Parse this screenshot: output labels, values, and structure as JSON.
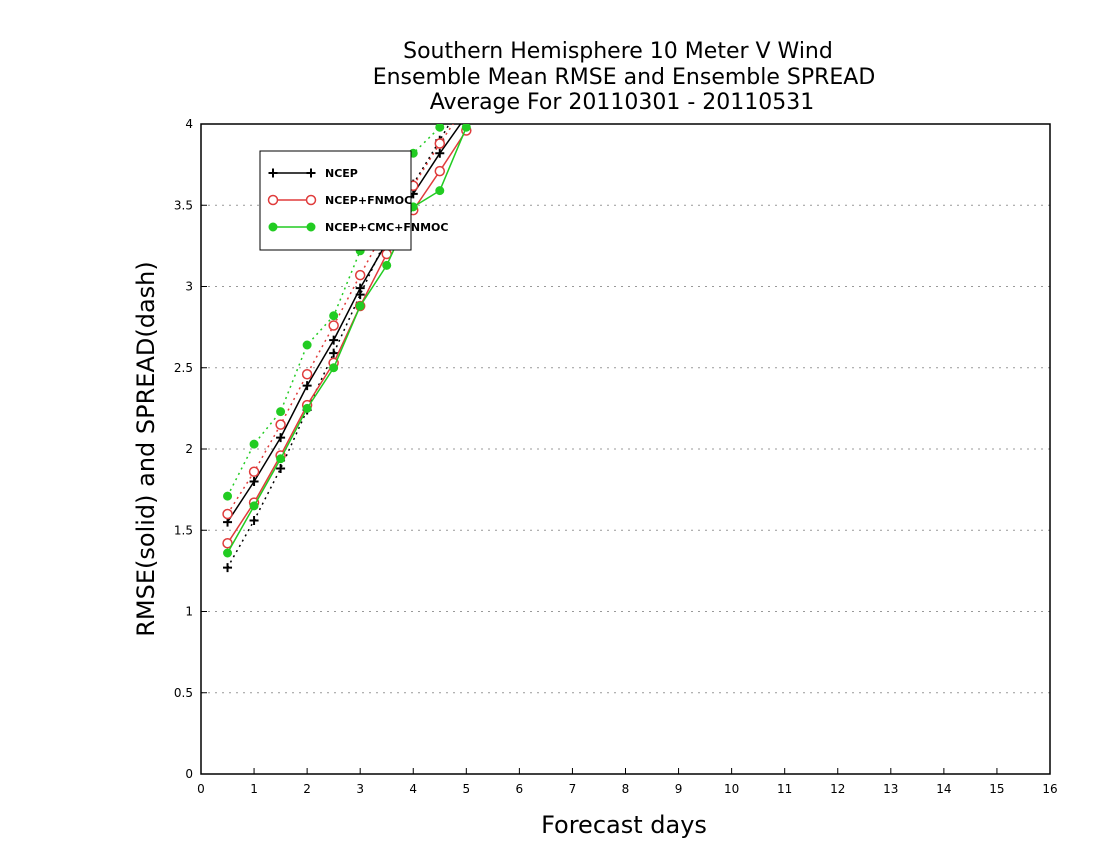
{
  "chart_data": {
    "type": "line",
    "title_lines": [
      "Southern Hemisphere 10 Meter V Wind",
      "Ensemble Mean RMSE and Ensemble SPREAD",
      "Average For 20110301 - 20110531"
    ],
    "xlabel": "Forecast days",
    "ylabel": "RMSE(solid) and SPREAD(dash)",
    "xlim": [
      0,
      16
    ],
    "ylim": [
      0,
      4
    ],
    "x_ticks": [
      "0",
      "1",
      "2",
      "3",
      "4",
      "5",
      "6",
      "7",
      "8",
      "9",
      "10",
      "11",
      "12",
      "13",
      "14",
      "15",
      "16"
    ],
    "y_ticks": [
      "0",
      "0.5",
      "1",
      "1.5",
      "2",
      "2.5",
      "3",
      "3.5",
      "4"
    ],
    "grid": "horizontal dotted",
    "legend_position": "top-left",
    "series": [
      {
        "name": "NCEP",
        "color": "#000000",
        "marker": "plus",
        "rmse": {
          "x": [
            0.5,
            1,
            1.5,
            2,
            2.5,
            3,
            3.5,
            4,
            4.5,
            5
          ],
          "y": [
            1.55,
            1.8,
            2.07,
            2.39,
            2.67,
            2.99,
            3.27,
            3.57,
            3.82,
            4.05
          ]
        },
        "spread": {
          "x": [
            0.5,
            1,
            1.5,
            2,
            2.5,
            3,
            3.5,
            4,
            4.5,
            5
          ],
          "y": [
            1.27,
            1.56,
            1.88,
            2.24,
            2.59,
            2.95,
            3.3,
            3.63,
            3.9,
            4.18
          ]
        }
      },
      {
        "name": "NCEP+FNMOC",
        "color": "#e03c3c",
        "marker": "open-circle",
        "rmse": {
          "x": [
            0.5,
            1,
            1.5,
            2,
            2.5,
            3,
            3.5,
            4,
            4.5,
            5
          ],
          "y": [
            1.42,
            1.67,
            1.96,
            2.27,
            2.53,
            2.88,
            3.2,
            3.47,
            3.71,
            3.96
          ]
        },
        "spread": {
          "x": [
            0.5,
            1,
            1.5,
            2,
            2.5,
            3,
            3.5,
            4,
            4.5,
            5
          ],
          "y": [
            1.6,
            1.86,
            2.15,
            2.46,
            2.76,
            3.07,
            3.37,
            3.62,
            3.88,
            4.12
          ]
        }
      },
      {
        "name": "NCEP+CMC+FNMOC",
        "color": "#22cc22",
        "marker": "filled-circle",
        "rmse": {
          "x": [
            0.5,
            1,
            1.5,
            2,
            2.5,
            3,
            3.5,
            4,
            4.5,
            5
          ],
          "y": [
            1.36,
            1.65,
            1.94,
            2.25,
            2.5,
            2.88,
            3.13,
            3.49,
            3.59,
            3.98
          ]
        },
        "spread": {
          "x": [
            0.5,
            1,
            1.5,
            2,
            2.5,
            3,
            3.5,
            4,
            4.5,
            5
          ],
          "y": [
            1.71,
            2.03,
            2.23,
            2.64,
            2.82,
            3.22,
            3.55,
            3.82,
            3.98,
            4.2
          ]
        }
      }
    ]
  }
}
